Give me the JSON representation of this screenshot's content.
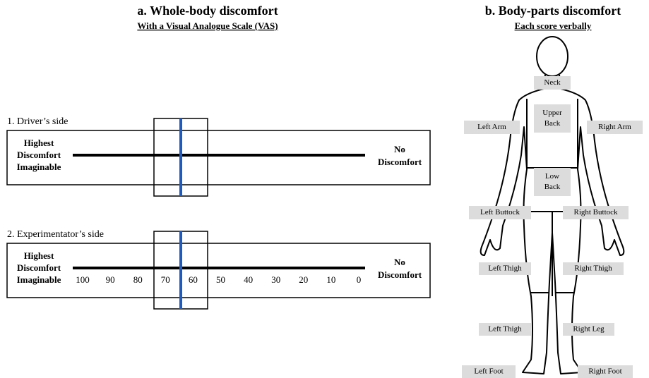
{
  "panel_a": {
    "title": "a.  Whole-body discomfort",
    "subtitle": "With a Visual Analogue Scale (VAS)",
    "scales": [
      {
        "label": "1. Driver’s side",
        "left": [
          "Highest",
          "Discomfort",
          "Imaginable"
        ],
        "right": [
          "No",
          "Discomfort"
        ]
      },
      {
        "label": "2. Experimentator’s side",
        "left": [
          "Highest",
          "Discomfort",
          "Imaginable"
        ],
        "right": [
          "No",
          "Discomfort"
        ],
        "ticks": [
          100,
          90,
          80,
          70,
          60,
          50,
          40,
          30,
          20,
          10,
          0
        ]
      }
    ]
  },
  "panel_b": {
    "title": "b. Body-parts discomfort",
    "subtitle": "Each score verbally",
    "parts": [
      [
        "Neck"
      ],
      [
        "Upper",
        "Back"
      ],
      [
        "Left Arm"
      ],
      [
        "Right Arm"
      ],
      [
        "Low",
        "Back"
      ],
      [
        "Left Buttock"
      ],
      [
        "Right Buttock"
      ],
      [
        "Left Thigh"
      ],
      [
        "Right Thigh"
      ],
      [
        "Left Thigh"
      ],
      [
        "Right Leg"
      ],
      [
        "Left Foot"
      ],
      [
        "Right Foot"
      ]
    ]
  }
}
